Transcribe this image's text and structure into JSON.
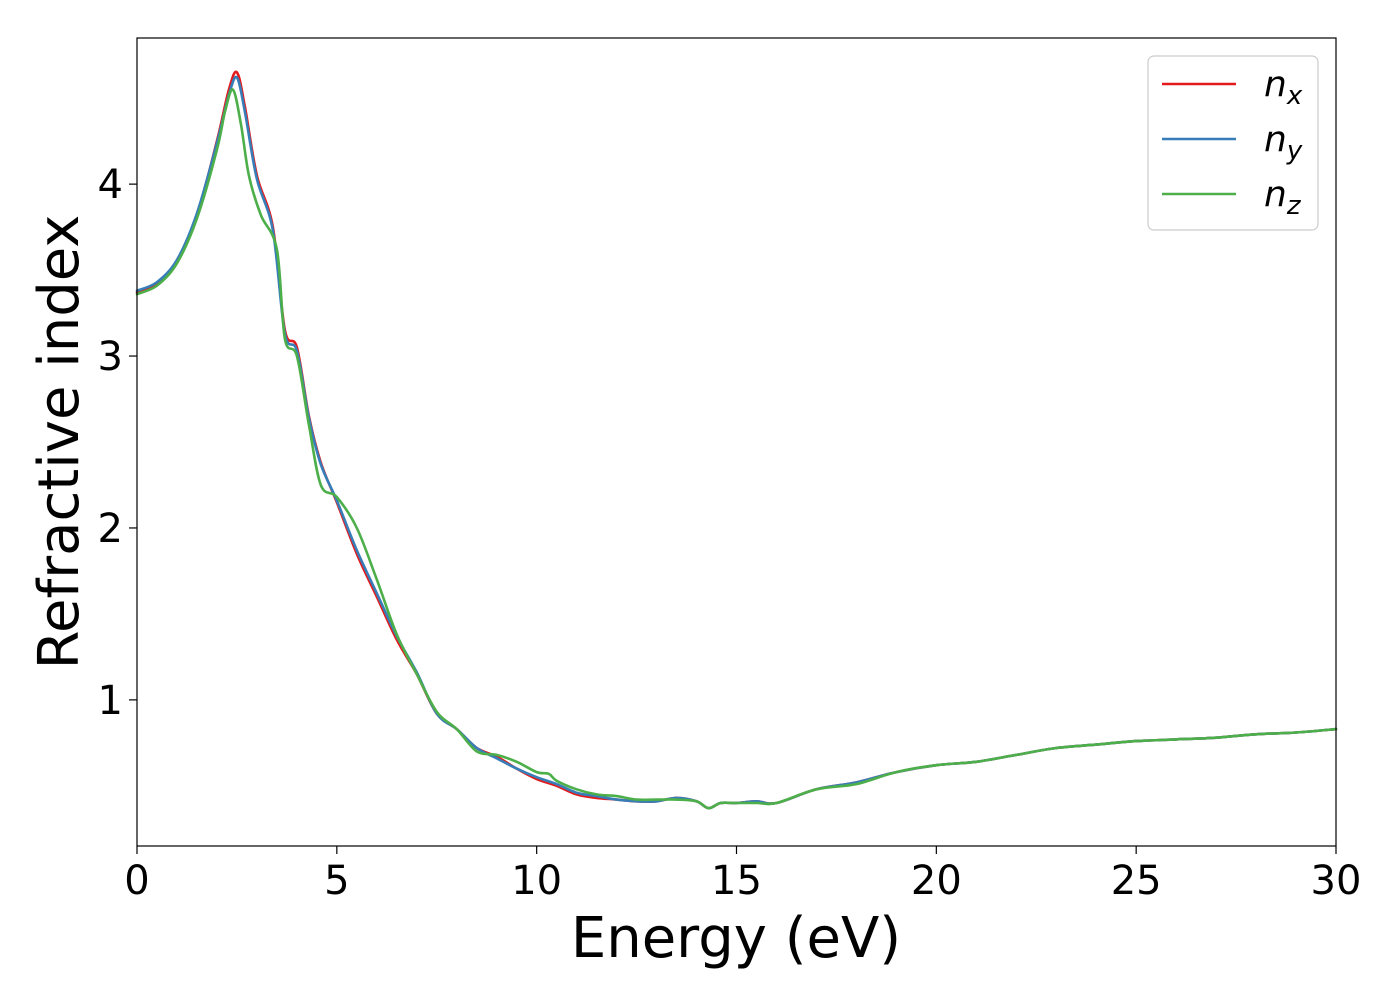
{
  "chart_data": {
    "type": "line",
    "title": "",
    "xlabel": "Energy (eV)",
    "ylabel": "Refractive index",
    "xlim": [
      0,
      30
    ],
    "ylim": [
      0.15,
      4.85
    ],
    "xticks": [
      0,
      5,
      10,
      15,
      20,
      25,
      30
    ],
    "yticks": [
      1,
      2,
      3,
      4
    ],
    "grid": false,
    "legend": "top-right",
    "series": [
      {
        "name": "n",
        "subscript": "x",
        "color": "#e41a1c",
        "x": [
          0,
          0.5,
          1.0,
          1.5,
          2.0,
          2.3,
          2.5,
          2.7,
          3.0,
          3.4,
          3.7,
          4.0,
          4.3,
          4.6,
          5.0,
          5.5,
          6.0,
          6.5,
          7.0,
          7.5,
          8.0,
          8.5,
          9.0,
          9.5,
          10.0,
          10.5,
          11.0,
          11.5,
          12.0,
          12.5,
          13.0,
          13.5,
          14.0,
          14.3,
          14.6,
          15.0,
          15.5,
          16.0,
          17.0,
          18.0,
          19.0,
          20.0,
          21.0,
          22.0,
          23.0,
          24.0,
          25.0,
          26.0,
          27.0,
          28.0,
          29.0,
          30.0
        ],
        "y": [
          3.37,
          3.42,
          3.55,
          3.82,
          4.25,
          4.55,
          4.65,
          4.45,
          4.05,
          3.75,
          3.15,
          3.05,
          2.65,
          2.38,
          2.15,
          1.85,
          1.6,
          1.35,
          1.15,
          0.92,
          0.83,
          0.72,
          0.67,
          0.6,
          0.54,
          0.5,
          0.45,
          0.43,
          0.42,
          0.41,
          0.41,
          0.43,
          0.41,
          0.37,
          0.4,
          0.4,
          0.41,
          0.4,
          0.48,
          0.52,
          0.58,
          0.62,
          0.64,
          0.68,
          0.72,
          0.74,
          0.76,
          0.77,
          0.78,
          0.8,
          0.81,
          0.83
        ]
      },
      {
        "name": "n",
        "subscript": "y",
        "color": "#377eb8",
        "x": [
          0,
          0.5,
          1.0,
          1.5,
          2.0,
          2.3,
          2.5,
          2.7,
          3.0,
          3.4,
          3.7,
          4.0,
          4.3,
          4.6,
          5.0,
          5.5,
          6.0,
          6.5,
          7.0,
          7.5,
          8.0,
          8.5,
          9.0,
          9.5,
          10.0,
          10.5,
          11.0,
          11.5,
          12.0,
          12.5,
          13.0,
          13.5,
          14.0,
          14.3,
          14.6,
          15.0,
          15.5,
          16.0,
          17.0,
          18.0,
          19.0,
          20.0,
          21.0,
          22.0,
          23.0,
          24.0,
          25.0,
          26.0,
          27.0,
          28.0,
          29.0,
          30.0
        ],
        "y": [
          3.38,
          3.43,
          3.56,
          3.83,
          4.24,
          4.52,
          4.62,
          4.42,
          4.03,
          3.73,
          3.13,
          3.03,
          2.64,
          2.37,
          2.16,
          1.87,
          1.62,
          1.37,
          1.16,
          0.92,
          0.83,
          0.72,
          0.66,
          0.6,
          0.55,
          0.51,
          0.46,
          0.44,
          0.42,
          0.41,
          0.41,
          0.43,
          0.41,
          0.37,
          0.4,
          0.4,
          0.41,
          0.4,
          0.48,
          0.52,
          0.58,
          0.62,
          0.64,
          0.68,
          0.72,
          0.74,
          0.76,
          0.77,
          0.78,
          0.8,
          0.81,
          0.83
        ]
      },
      {
        "name": "n",
        "subscript": "z",
        "color": "#4daf4a",
        "x": [
          0,
          0.5,
          1.0,
          1.5,
          2.0,
          2.2,
          2.4,
          2.6,
          2.8,
          3.1,
          3.5,
          3.7,
          4.0,
          4.3,
          4.6,
          5.0,
          5.5,
          6.0,
          6.5,
          7.0,
          7.5,
          8.0,
          8.5,
          9.0,
          9.5,
          10.0,
          10.3,
          10.5,
          11.0,
          11.5,
          12.0,
          12.5,
          13.0,
          13.5,
          14.0,
          14.3,
          14.6,
          15.0,
          15.5,
          16.0,
          17.0,
          18.0,
          19.0,
          20.0,
          21.0,
          22.0,
          23.0,
          24.0,
          25.0,
          26.0,
          27.0,
          28.0,
          29.0,
          30.0
        ],
        "y": [
          3.36,
          3.41,
          3.54,
          3.8,
          4.2,
          4.42,
          4.55,
          4.35,
          4.05,
          3.82,
          3.62,
          3.1,
          3.0,
          2.6,
          2.25,
          2.18,
          2.0,
          1.7,
          1.38,
          1.15,
          0.93,
          0.83,
          0.7,
          0.68,
          0.64,
          0.58,
          0.57,
          0.53,
          0.48,
          0.45,
          0.44,
          0.42,
          0.42,
          0.42,
          0.41,
          0.37,
          0.4,
          0.4,
          0.4,
          0.4,
          0.48,
          0.51,
          0.58,
          0.62,
          0.64,
          0.68,
          0.72,
          0.74,
          0.76,
          0.77,
          0.78,
          0.8,
          0.81,
          0.83
        ]
      }
    ]
  }
}
